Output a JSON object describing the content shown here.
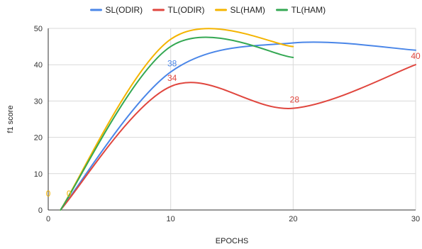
{
  "chart_data": {
    "type": "line",
    "title": "",
    "xlabel": "EPOCHS",
    "ylabel": "f1 score",
    "xlim": [
      0,
      30
    ],
    "ylim": [
      0,
      50
    ],
    "x_ticks": [
      0,
      10,
      20,
      30
    ],
    "y_ticks": [
      0,
      10,
      20,
      30,
      40,
      50
    ],
    "x_tick_labels": [
      "0",
      "10",
      "20",
      "30"
    ],
    "y_tick_labels": [
      "0",
      "10",
      "20",
      "30",
      "40",
      "50"
    ],
    "grid": true,
    "smooth": true,
    "legend_position": "top",
    "series": [
      {
        "name": "SL(ODIR)",
        "color": "#4a86e8",
        "points": [
          [
            1,
            0
          ],
          [
            10,
            38
          ],
          [
            20,
            46
          ],
          [
            30,
            44
          ]
        ],
        "labels": [
          {
            "x": 0,
            "y": 0,
            "text": "0",
            "show": false
          },
          {
            "x": 10,
            "y": 38,
            "text": "38",
            "show": true
          },
          {
            "x": 30,
            "y": 44,
            "text": "",
            "show": false
          }
        ]
      },
      {
        "name": "TL(ODIR)",
        "color": "#e0463e",
        "points": [
          [
            1,
            0
          ],
          [
            10,
            34
          ],
          [
            20,
            28
          ],
          [
            30,
            40
          ]
        ],
        "labels": [
          {
            "x": 10,
            "y": 34,
            "text": "34",
            "show": true
          },
          {
            "x": 20,
            "y": 28,
            "text": "28",
            "show": true
          },
          {
            "x": 30,
            "y": 40,
            "text": "40",
            "show": true
          }
        ]
      },
      {
        "name": "SL(HAM)",
        "color": "#f4b400",
        "points": [
          [
            1,
            0
          ],
          [
            10,
            47
          ],
          [
            20,
            45
          ]
        ],
        "labels": [
          {
            "x": 0,
            "y": 0,
            "text": "0",
            "show": true
          }
        ]
      },
      {
        "name": "TL(HAM)",
        "color": "#34a853",
        "points": [
          [
            1,
            0
          ],
          [
            10,
            45
          ],
          [
            20,
            42
          ]
        ],
        "labels": []
      }
    ],
    "extra_labels": [
      {
        "x": 1,
        "y": 0,
        "text": "0",
        "color": "#f4b400"
      }
    ]
  }
}
